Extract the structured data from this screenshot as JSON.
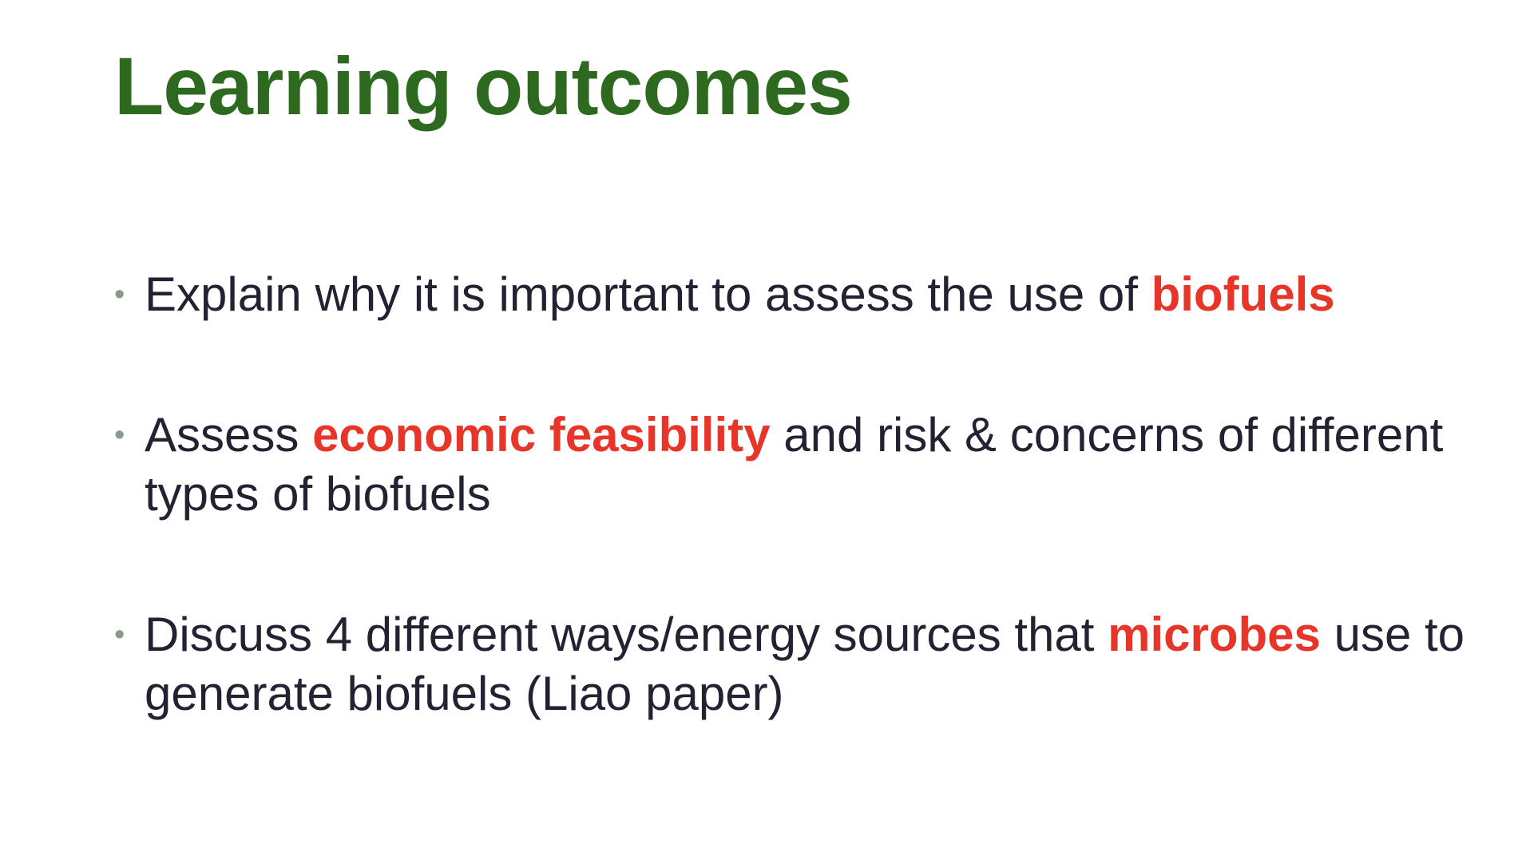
{
  "slide": {
    "title": "Learning outcomes",
    "colors": {
      "title": "#2d6a1f",
      "text": "#222233",
      "highlight": "#e8352a",
      "bullet": "#8a9a8a"
    },
    "bullet_glyph": "•",
    "bullets": [
      {
        "before": "Explain why it is important to assess the use of ",
        "highlight": "biofuels",
        "after": ""
      },
      {
        "before": "Assess ",
        "highlight": "economic feasibility",
        "after": " and risk & concerns of different types of biofuels"
      },
      {
        "before": "Discuss 4 different ways/energy sources that ",
        "highlight": "microbes",
        "after": " use to generate biofuels (Liao paper)"
      }
    ]
  }
}
